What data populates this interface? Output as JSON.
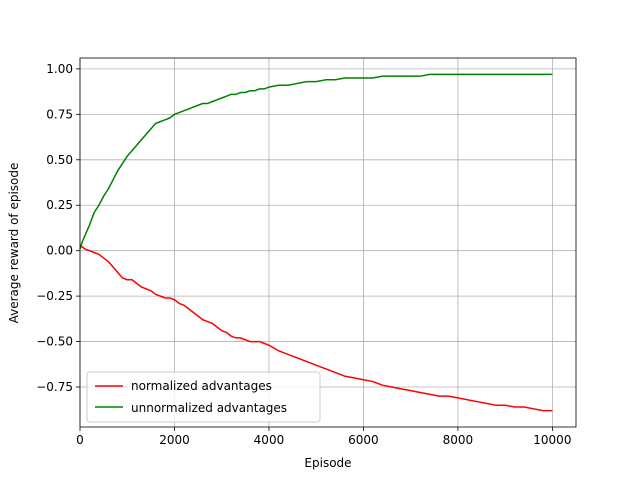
{
  "chart_data": {
    "type": "line",
    "title": "",
    "xlabel": "Episode",
    "ylabel": "Average reward of episode",
    "xlim": [
      0,
      10500
    ],
    "ylim": [
      -0.97,
      1.06
    ],
    "xticks": [
      0,
      2000,
      4000,
      6000,
      8000,
      10000
    ],
    "yticks": [
      -0.75,
      -0.5,
      -0.25,
      0.0,
      0.25,
      0.5,
      0.75,
      1.0
    ],
    "xtick_labels": [
      "0",
      "2000",
      "4000",
      "6000",
      "8000",
      "10000"
    ],
    "ytick_labels": [
      "−0.75",
      "−0.50",
      "−0.25",
      "0.00",
      "0.25",
      "0.50",
      "0.75",
      "1.00"
    ],
    "grid": true,
    "legend_position": "lower-left",
    "series": [
      {
        "name": "normalized advantages",
        "color": "#ff0000",
        "x": [
          0,
          100,
          200,
          300,
          400,
          500,
          600,
          700,
          800,
          900,
          1000,
          1100,
          1200,
          1300,
          1400,
          1500,
          1600,
          1700,
          1800,
          1900,
          2000,
          2100,
          2200,
          2300,
          2400,
          2500,
          2600,
          2700,
          2800,
          2900,
          3000,
          3100,
          3200,
          3300,
          3400,
          3500,
          3600,
          3700,
          3800,
          3900,
          4000,
          4200,
          4400,
          4600,
          4800,
          5000,
          5200,
          5400,
          5600,
          5800,
          6000,
          6200,
          6400,
          6600,
          6800,
          7000,
          7200,
          7400,
          7600,
          7800,
          8000,
          8200,
          8400,
          8600,
          8800,
          9000,
          9200,
          9400,
          9600,
          9800,
          10000
        ],
        "y": [
          0.03,
          0.01,
          0.0,
          -0.01,
          -0.02,
          -0.04,
          -0.06,
          -0.09,
          -0.12,
          -0.15,
          -0.16,
          -0.16,
          -0.18,
          -0.2,
          -0.21,
          -0.22,
          -0.24,
          -0.25,
          -0.26,
          -0.26,
          -0.27,
          -0.29,
          -0.3,
          -0.32,
          -0.34,
          -0.36,
          -0.38,
          -0.39,
          -0.4,
          -0.42,
          -0.44,
          -0.45,
          -0.47,
          -0.48,
          -0.48,
          -0.49,
          -0.5,
          -0.5,
          -0.5,
          -0.51,
          -0.52,
          -0.55,
          -0.57,
          -0.59,
          -0.61,
          -0.63,
          -0.65,
          -0.67,
          -0.69,
          -0.7,
          -0.71,
          -0.72,
          -0.74,
          -0.75,
          -0.76,
          -0.77,
          -0.78,
          -0.79,
          -0.8,
          -0.8,
          -0.81,
          -0.82,
          -0.83,
          -0.84,
          -0.85,
          -0.85,
          -0.86,
          -0.86,
          -0.87,
          -0.88,
          -0.88
        ]
      },
      {
        "name": "unnormalized advantages",
        "color": "#008000",
        "x": [
          0,
          50,
          100,
          200,
          300,
          400,
          500,
          600,
          700,
          800,
          900,
          1000,
          1100,
          1200,
          1300,
          1400,
          1500,
          1600,
          1700,
          1800,
          1900,
          2000,
          2100,
          2200,
          2300,
          2400,
          2500,
          2600,
          2700,
          2800,
          2900,
          3000,
          3100,
          3200,
          3300,
          3400,
          3500,
          3600,
          3700,
          3800,
          3900,
          4000,
          4200,
          4400,
          4600,
          4800,
          5000,
          5200,
          5400,
          5600,
          5800,
          6000,
          6200,
          6400,
          6600,
          6800,
          7000,
          7200,
          7400,
          7600,
          7800,
          8000,
          8200,
          8400,
          8600,
          8800,
          9000,
          9200,
          9400,
          9600,
          9800,
          10000
        ],
        "y": [
          0.01,
          0.05,
          0.08,
          0.14,
          0.21,
          0.25,
          0.3,
          0.34,
          0.39,
          0.44,
          0.48,
          0.52,
          0.55,
          0.58,
          0.61,
          0.64,
          0.67,
          0.7,
          0.71,
          0.72,
          0.73,
          0.75,
          0.76,
          0.77,
          0.78,
          0.79,
          0.8,
          0.81,
          0.81,
          0.82,
          0.83,
          0.84,
          0.85,
          0.86,
          0.86,
          0.87,
          0.87,
          0.88,
          0.88,
          0.89,
          0.89,
          0.9,
          0.91,
          0.91,
          0.92,
          0.93,
          0.93,
          0.94,
          0.94,
          0.95,
          0.95,
          0.95,
          0.95,
          0.96,
          0.96,
          0.96,
          0.96,
          0.96,
          0.97,
          0.97,
          0.97,
          0.97,
          0.97,
          0.97,
          0.97,
          0.97,
          0.97,
          0.97,
          0.97,
          0.97,
          0.97,
          0.97
        ]
      }
    ]
  }
}
